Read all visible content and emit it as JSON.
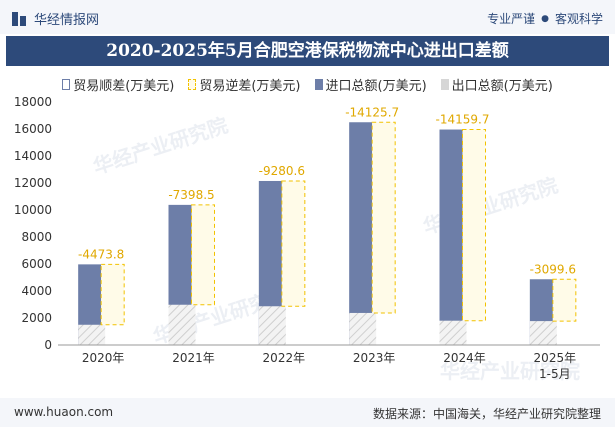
{
  "header": {
    "brand": "华经情报网",
    "slogan_left": "专业严谨",
    "slogan_right": "客观科学"
  },
  "chart_data": {
    "type": "bar",
    "title": "2020-2025年5月合肥空港保税物流中心进出口差额",
    "categories": [
      "2020年",
      "2021年",
      "2022年",
      "2023年",
      "2024年",
      "2025年"
    ],
    "category_sublabels": [
      "",
      "",
      "",
      "",
      "",
      "1-5月"
    ],
    "ylim": [
      0,
      18000
    ],
    "yticks": [
      0,
      2000,
      4000,
      6000,
      8000,
      10000,
      12000,
      14000,
      16000,
      18000
    ],
    "series": [
      {
        "name": "贸易顺差(万美元)",
        "values": [
          null,
          null,
          null,
          null,
          null,
          null
        ],
        "color": "#6d7ea8"
      },
      {
        "name": "贸易逆差(万美元)",
        "values": [
          -4473.8,
          -7398.5,
          -9280.6,
          -14125.7,
          -14159.7,
          -3099.6
        ],
        "color": "#f2c200"
      },
      {
        "name": "进口总额(万美元)",
        "values": [
          5973,
          10380,
          12150,
          16500,
          15960,
          4870
        ],
        "color": "#6d7ea8"
      },
      {
        "name": "出口总额(万美元)",
        "values": [
          1499,
          2982,
          2869,
          2374,
          1800,
          1770
        ],
        "color": "#d6d6d6"
      }
    ],
    "data_labels": [
      "-4473.8",
      "-7398.5",
      "-9280.6",
      "-14125.7",
      "-14159.7",
      "-3099.6"
    ],
    "legend_position": "top"
  },
  "watermarks": [
    "华经产业研究院",
    "www.huaon.com"
  ],
  "footer": {
    "url": "www.huaon.com",
    "source": "数据来源：中国海关，华经产业研究院整理"
  }
}
